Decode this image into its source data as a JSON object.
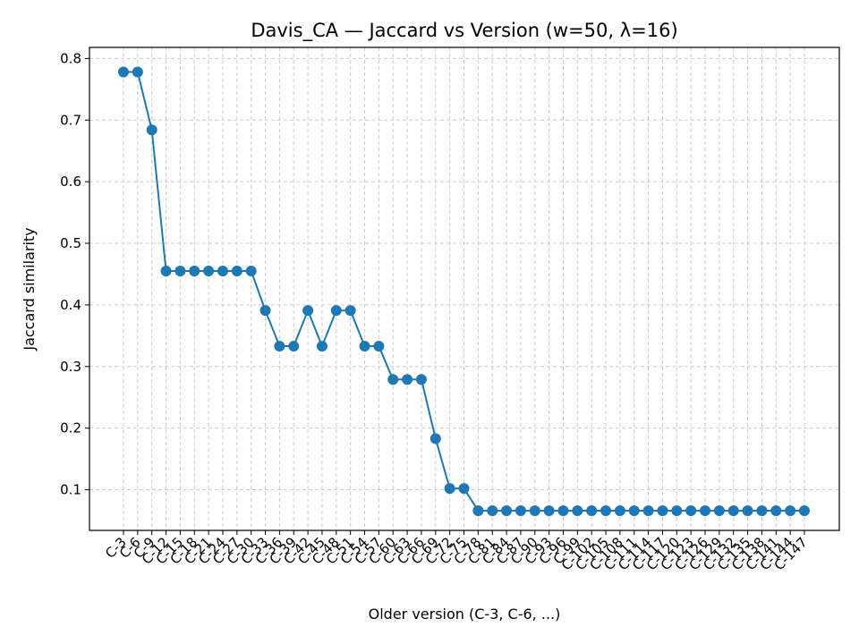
{
  "chart_data": {
    "type": "line",
    "title": "Davis_CA — Jaccard vs Version (w=50, λ=16)",
    "xlabel": "Older version (C-3, C-6, ...)",
    "ylabel": "Jaccard similarity",
    "ylim": [
      0.034,
      0.818
    ],
    "yticks": [
      "0.1",
      "0.2",
      "0.3",
      "0.4",
      "0.5",
      "0.6",
      "0.7",
      "0.8"
    ],
    "grid": true,
    "color": "#1f77b4",
    "categories": [
      "C-3",
      "C-6",
      "C-9",
      "C-12",
      "C-15",
      "C-18",
      "C-21",
      "C-24",
      "C-27",
      "C-30",
      "C-33",
      "C-36",
      "C-39",
      "C-42",
      "C-45",
      "C-48",
      "C-51",
      "C-54",
      "C-57",
      "C-60",
      "C-63",
      "C-66",
      "C-69",
      "C-72",
      "C-75",
      "C-78",
      "C-81",
      "C-84",
      "C-87",
      "C-90",
      "C-93",
      "C-96",
      "C-99",
      "C-102",
      "C-105",
      "C-108",
      "C-111",
      "C-114",
      "C-117",
      "C-120",
      "C-123",
      "C-126",
      "C-129",
      "C-132",
      "C-135",
      "C-138",
      "C-141",
      "C-144",
      "C-147"
    ],
    "series": [
      {
        "values": [
          0.778,
          0.778,
          0.684,
          0.455,
          0.455,
          0.455,
          0.455,
          0.455,
          0.455,
          0.455,
          0.391,
          0.333,
          0.333,
          0.391,
          0.333,
          0.391,
          0.391,
          0.333,
          0.333,
          0.279,
          0.279,
          0.279,
          0.183,
          0.102,
          0.102,
          0.066,
          0.066,
          0.066,
          0.066,
          0.066,
          0.066,
          0.066,
          0.066,
          0.066,
          0.066,
          0.066,
          0.066,
          0.066,
          0.066,
          0.066,
          0.066,
          0.066,
          0.066,
          0.066,
          0.066,
          0.066,
          0.066,
          0.066,
          0.066
        ]
      }
    ]
  }
}
